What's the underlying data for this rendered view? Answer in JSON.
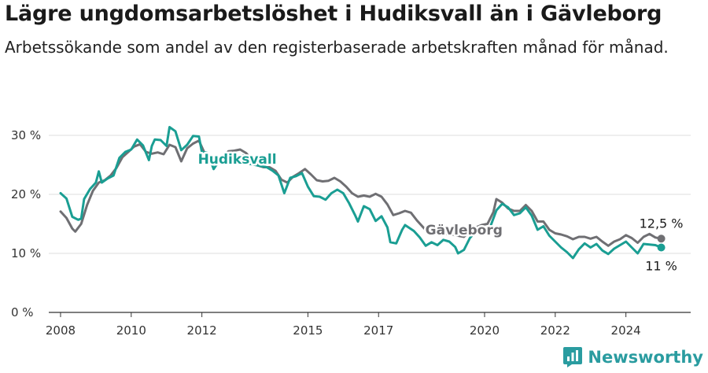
{
  "header": {
    "title": "Lägre ungdomsarbetslöshet i Hudiksvall än i Gävleborg",
    "subtitle": "Arbetssökande som andel av den registerbaserade arbetskraften månad för månad."
  },
  "brand": {
    "name": "Newsworthy",
    "color": "#2a9ca0"
  },
  "chart_data": {
    "type": "line",
    "title": "Lägre ungdomsarbetslöshet i Hudiksvall än i Gävleborg",
    "subtitle": "Arbetssökande som andel av den registerbaserade arbetskraften månad för månad.",
    "xlabel": "",
    "ylabel": "",
    "x_ticks": [
      "2008",
      "2010",
      "2012",
      "2015",
      "2017",
      "2020",
      "2022",
      "2024"
    ],
    "x_range": [
      "2007-09",
      "2025-11"
    ],
    "y_ticks": [
      "0 %",
      "10 %",
      "20 %",
      "30 %"
    ],
    "ylim": [
      0,
      30
    ],
    "grid": true,
    "series": [
      {
        "name": "Hudiksvall",
        "color": "#1a9e93",
        "end_label": "11 %",
        "points": [
          [
            "2008-01",
            20.2
          ],
          [
            "2008-03",
            19.3
          ],
          [
            "2008-05",
            16.2
          ],
          [
            "2008-07",
            15.7
          ],
          [
            "2008-08",
            15.9
          ],
          [
            "2008-09",
            19.2
          ],
          [
            "2008-11",
            20.9
          ],
          [
            "2009-01",
            22.0
          ],
          [
            "2009-02",
            23.9
          ],
          [
            "2009-03",
            22.0
          ],
          [
            "2009-05",
            22.7
          ],
          [
            "2009-07",
            23.2
          ],
          [
            "2009-09",
            26.2
          ],
          [
            "2009-11",
            27.2
          ],
          [
            "2010-01",
            27.6
          ],
          [
            "2010-03",
            29.3
          ],
          [
            "2010-05",
            28.3
          ],
          [
            "2010-07",
            25.8
          ],
          [
            "2010-08",
            28.2
          ],
          [
            "2010-09",
            29.3
          ],
          [
            "2010-11",
            29.2
          ],
          [
            "2011-01",
            28.2
          ],
          [
            "2011-02",
            31.4
          ],
          [
            "2011-04",
            30.7
          ],
          [
            "2011-06",
            27.5
          ],
          [
            "2011-08",
            28.4
          ],
          [
            "2011-10",
            29.9
          ],
          [
            "2011-12",
            29.8
          ],
          [
            "2012-01",
            27.2
          ],
          [
            "2012-03",
            27.0
          ],
          [
            "2012-05",
            24.3
          ],
          [
            "2012-07",
            25.8
          ],
          [
            "2012-09",
            25.2
          ],
          [
            "2012-11",
            25.2
          ],
          [
            "2013-01",
            25.7
          ],
          [
            "2013-03",
            26.6
          ],
          [
            "2013-05",
            25.2
          ],
          [
            "2013-07",
            25.0
          ],
          [
            "2013-09",
            24.8
          ],
          [
            "2013-11",
            24.6
          ],
          [
            "2014-01",
            24.0
          ],
          [
            "2014-03",
            23.2
          ],
          [
            "2014-05",
            20.2
          ],
          [
            "2014-07",
            22.8
          ],
          [
            "2014-09",
            23.1
          ],
          [
            "2014-11",
            23.6
          ],
          [
            "2015-01",
            21.3
          ],
          [
            "2015-03",
            19.7
          ],
          [
            "2015-05",
            19.6
          ],
          [
            "2015-07",
            19.1
          ],
          [
            "2015-09",
            20.2
          ],
          [
            "2015-11",
            20.8
          ],
          [
            "2016-01",
            20.2
          ],
          [
            "2016-03",
            18.5
          ],
          [
            "2016-05",
            16.5
          ],
          [
            "2016-06",
            15.4
          ],
          [
            "2016-08",
            18.0
          ],
          [
            "2016-10",
            17.5
          ],
          [
            "2016-12",
            15.5
          ],
          [
            "2017-02",
            16.3
          ],
          [
            "2017-04",
            14.4
          ],
          [
            "2017-05",
            11.9
          ],
          [
            "2017-07",
            11.7
          ],
          [
            "2017-09",
            14.0
          ],
          [
            "2017-10",
            14.8
          ],
          [
            "2018-01",
            13.8
          ],
          [
            "2018-03",
            12.7
          ],
          [
            "2018-05",
            11.3
          ],
          [
            "2018-07",
            11.9
          ],
          [
            "2018-09",
            11.4
          ],
          [
            "2018-11",
            12.3
          ],
          [
            "2019-01",
            12.0
          ],
          [
            "2019-03",
            11.1
          ],
          [
            "2019-04",
            10.0
          ],
          [
            "2019-06",
            10.6
          ],
          [
            "2019-08",
            12.6
          ],
          [
            "2019-10",
            13.7
          ],
          [
            "2020-01",
            14.2
          ],
          [
            "2020-03",
            14.6
          ],
          [
            "2020-05",
            17.3
          ],
          [
            "2020-07",
            18.4
          ],
          [
            "2020-09",
            17.8
          ],
          [
            "2020-11",
            16.5
          ],
          [
            "2021-01",
            16.8
          ],
          [
            "2021-03",
            17.8
          ],
          [
            "2021-05",
            16.4
          ],
          [
            "2021-07",
            14.0
          ],
          [
            "2021-09",
            14.6
          ],
          [
            "2021-11",
            13.0
          ],
          [
            "2022-01",
            12.0
          ],
          [
            "2022-03",
            11.0
          ],
          [
            "2022-05",
            10.2
          ],
          [
            "2022-07",
            9.2
          ],
          [
            "2022-09",
            10.7
          ],
          [
            "2022-11",
            11.7
          ],
          [
            "2023-01",
            11.0
          ],
          [
            "2023-03",
            11.6
          ],
          [
            "2023-05",
            10.5
          ],
          [
            "2023-07",
            9.9
          ],
          [
            "2023-09",
            10.8
          ],
          [
            "2023-11",
            11.4
          ],
          [
            "2024-01",
            12.0
          ],
          [
            "2024-03",
            11.0
          ],
          [
            "2024-05",
            10.0
          ],
          [
            "2024-07",
            11.6
          ],
          [
            "2024-09",
            11.5
          ],
          [
            "2024-11",
            11.4
          ],
          [
            "2025-01",
            11.0
          ]
        ]
      },
      {
        "name": "Gävleborg",
        "color": "#6f6f73",
        "end_label": "12,5 %",
        "points": [
          [
            "2008-01",
            17.1
          ],
          [
            "2008-03",
            16.0
          ],
          [
            "2008-05",
            14.2
          ],
          [
            "2008-06",
            13.7
          ],
          [
            "2008-08",
            15.0
          ],
          [
            "2008-10",
            18.2
          ],
          [
            "2008-12",
            20.6
          ],
          [
            "2009-02",
            22.0
          ],
          [
            "2009-04",
            22.4
          ],
          [
            "2009-06",
            23.2
          ],
          [
            "2009-08",
            24.5
          ],
          [
            "2009-10",
            26.3
          ],
          [
            "2009-12",
            27.2
          ],
          [
            "2010-02",
            28.1
          ],
          [
            "2010-04",
            28.5
          ],
          [
            "2010-06",
            27.2
          ],
          [
            "2010-08",
            26.9
          ],
          [
            "2010-10",
            27.1
          ],
          [
            "2010-12",
            26.8
          ],
          [
            "2011-02",
            28.4
          ],
          [
            "2011-04",
            28.0
          ],
          [
            "2011-06",
            25.6
          ],
          [
            "2011-08",
            27.8
          ],
          [
            "2011-10",
            28.6
          ],
          [
            "2011-12",
            29.1
          ],
          [
            "2012-02",
            26.9
          ],
          [
            "2012-04",
            26.2
          ],
          [
            "2012-06",
            25.0
          ],
          [
            "2012-08",
            26.2
          ],
          [
            "2012-10",
            27.3
          ],
          [
            "2012-12",
            27.4
          ],
          [
            "2013-02",
            27.6
          ],
          [
            "2013-04",
            27.0
          ],
          [
            "2013-06",
            25.8
          ],
          [
            "2013-08",
            24.9
          ],
          [
            "2013-10",
            24.6
          ],
          [
            "2013-12",
            24.6
          ],
          [
            "2014-02",
            24.0
          ],
          [
            "2014-04",
            22.5
          ],
          [
            "2014-06",
            22.0
          ],
          [
            "2014-08",
            23.0
          ],
          [
            "2014-10",
            23.6
          ],
          [
            "2014-12",
            24.3
          ],
          [
            "2015-02",
            23.4
          ],
          [
            "2015-04",
            22.4
          ],
          [
            "2015-06",
            22.2
          ],
          [
            "2015-08",
            22.3
          ],
          [
            "2015-10",
            22.8
          ],
          [
            "2015-12",
            22.2
          ],
          [
            "2016-02",
            21.3
          ],
          [
            "2016-04",
            20.2
          ],
          [
            "2016-06",
            19.6
          ],
          [
            "2016-08",
            19.8
          ],
          [
            "2016-10",
            19.6
          ],
          [
            "2016-12",
            20.1
          ],
          [
            "2017-02",
            19.6
          ],
          [
            "2017-04",
            18.3
          ],
          [
            "2017-06",
            16.5
          ],
          [
            "2017-08",
            16.8
          ],
          [
            "2017-10",
            17.2
          ],
          [
            "2017-12",
            16.9
          ],
          [
            "2018-02",
            15.6
          ],
          [
            "2018-04",
            14.5
          ],
          [
            "2018-06",
            13.5
          ],
          [
            "2018-08",
            13.7
          ],
          [
            "2018-10",
            13.5
          ],
          [
            "2018-12",
            13.3
          ],
          [
            "2019-02",
            13.2
          ],
          [
            "2019-04",
            13.0
          ],
          [
            "2019-06",
            12.8
          ],
          [
            "2019-08",
            13.8
          ],
          [
            "2019-10",
            14.4
          ],
          [
            "2019-12",
            14.8
          ],
          [
            "2020-02",
            15.0
          ],
          [
            "2020-04",
            17.0
          ],
          [
            "2020-05",
            19.2
          ],
          [
            "2020-07",
            18.6
          ],
          [
            "2020-09",
            17.6
          ],
          [
            "2020-11",
            17.2
          ],
          [
            "2021-01",
            17.2
          ],
          [
            "2021-03",
            18.2
          ],
          [
            "2021-05",
            17.2
          ],
          [
            "2021-07",
            15.4
          ],
          [
            "2021-09",
            15.4
          ],
          [
            "2021-11",
            14.0
          ],
          [
            "2022-01",
            13.4
          ],
          [
            "2022-03",
            13.2
          ],
          [
            "2022-05",
            12.9
          ],
          [
            "2022-07",
            12.4
          ],
          [
            "2022-09",
            12.8
          ],
          [
            "2022-11",
            12.8
          ],
          [
            "2023-01",
            12.5
          ],
          [
            "2023-03",
            12.8
          ],
          [
            "2023-05",
            12.0
          ],
          [
            "2023-07",
            11.3
          ],
          [
            "2023-09",
            12.0
          ],
          [
            "2023-11",
            12.4
          ],
          [
            "2024-01",
            13.1
          ],
          [
            "2024-03",
            12.6
          ],
          [
            "2024-05",
            11.8
          ],
          [
            "2024-07",
            12.8
          ],
          [
            "2024-09",
            13.3
          ],
          [
            "2024-11",
            12.7
          ],
          [
            "2025-01",
            12.5
          ]
        ]
      }
    ],
    "annotations": [
      {
        "series": "Hudiksvall",
        "text": "Hudiksvall",
        "at": [
          "2013-01",
          25.2
        ]
      },
      {
        "series": "Gävleborg",
        "text": "Gävleborg",
        "at": [
          "2019-06",
          13.2
        ]
      }
    ]
  }
}
